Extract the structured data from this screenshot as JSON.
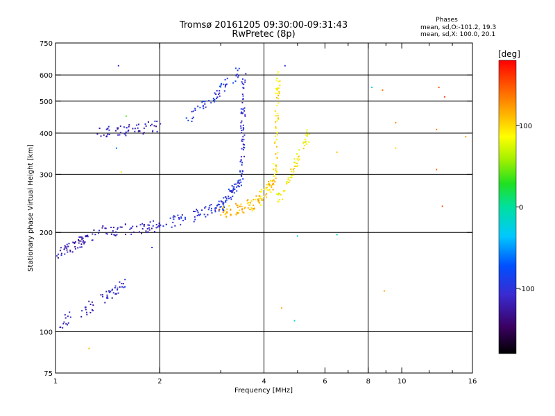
{
  "chart_data": {
    "type": "scatter",
    "title": "Tromsø 20161205 09:30:00-09:31:43",
    "subtitle": "RwPretec (8p)",
    "stats": {
      "heading": "Phases",
      "line1": "mean, sd,O:-101.2, 19.3",
      "line2": "mean, sd,X: 100.0, 20.1"
    },
    "xlabel": "Frequency [MHz]",
    "ylabel": "Stationary phase Virtual Height [km]",
    "x_scale": "log",
    "y_scale": "log",
    "xlim": [
      1,
      16
    ],
    "ylim": [
      75,
      750
    ],
    "x_ticks": [
      1,
      2,
      4,
      6,
      8,
      10,
      16
    ],
    "x_tick_labels": [
      "1",
      "2",
      "4",
      "6",
      "8",
      "10",
      "16"
    ],
    "x_major_grid": [
      2,
      4,
      8
    ],
    "x_minor_ticks": [
      3,
      5,
      7,
      9,
      12,
      14
    ],
    "y_ticks": [
      75,
      100,
      200,
      300,
      400,
      500,
      600,
      750
    ],
    "y_tick_labels": [
      "75",
      "100",
      "200",
      "300",
      "400",
      "500",
      "600",
      "750"
    ],
    "y_major_grid": [
      100,
      200,
      300,
      400,
      500,
      600
    ],
    "grid": true,
    "colorbar": {
      "label": "[deg]",
      "range": [
        -180,
        180
      ],
      "ticks": [
        100,
        0,
        -100
      ],
      "tick_labels": [
        "100",
        "0",
        "-100"
      ]
    },
    "series": [
      {
        "mode": "O",
        "mean_phase": -101.2,
        "sd_phase": 19.3,
        "segments": [
          {
            "f": [
              1.0,
              1.3
            ],
            "h": [
              170,
              200
            ],
            "phase": -120
          },
          {
            "f": [
              1.3,
              2.0
            ],
            "h": [
              200,
              210
            ],
            "phase": -115
          },
          {
            "f": [
              2.0,
              3.0
            ],
            "h": [
              210,
              240
            ],
            "phase": -100
          },
          {
            "f": [
              3.0,
              3.45
            ],
            "h": [
              240,
              290
            ],
            "phase": -95
          },
          {
            "f": [
              3.45,
              3.5
            ],
            "h": [
              290,
              600
            ],
            "phase": -105
          },
          {
            "f": [
              1.0,
              1.6
            ],
            "h": [
              105,
              140
            ],
            "phase": -110
          },
          {
            "f": [
              1.3,
              2.0
            ],
            "h": [
              400,
              420
            ],
            "phase": -115
          },
          {
            "f": [
              2.4,
              3.4
            ],
            "h": [
              440,
              620
            ],
            "phase": -95
          }
        ]
      },
      {
        "mode": "X",
        "mean_phase": 100.0,
        "sd_phase": 20.1,
        "segments": [
          {
            "f": [
              3.0,
              3.8
            ],
            "h": [
              230,
              245
            ],
            "phase": 110
          },
          {
            "f": [
              3.8,
              4.3
            ],
            "h": [
              245,
              290
            ],
            "phase": 105
          },
          {
            "f": [
              4.3,
              4.4
            ],
            "h": [
              290,
              600
            ],
            "phase": 95
          },
          {
            "f": [
              4.4,
              5.4
            ],
            "h": [
              250,
              400
            ],
            "phase": 90
          }
        ]
      }
    ],
    "scattered_points": [
      {
        "x": 1.52,
        "y": 640,
        "phase": -110
      },
      {
        "x": 4.6,
        "y": 640,
        "phase": -100
      },
      {
        "x": 8.2,
        "y": 550,
        "phase": -30
      },
      {
        "x": 8.8,
        "y": 540,
        "phase": 140
      },
      {
        "x": 12.8,
        "y": 550,
        "phase": 150
      },
      {
        "x": 13.3,
        "y": 515,
        "phase": 160
      },
      {
        "x": 15.3,
        "y": 390,
        "phase": 120
      },
      {
        "x": 6.5,
        "y": 350,
        "phase": 110
      },
      {
        "x": 9.6,
        "y": 360,
        "phase": 100
      },
      {
        "x": 9.6,
        "y": 430,
        "phase": 130
      },
      {
        "x": 12.6,
        "y": 310,
        "phase": 140
      },
      {
        "x": 12.6,
        "y": 410,
        "phase": 130
      },
      {
        "x": 13.1,
        "y": 240,
        "phase": 150
      },
      {
        "x": 5.0,
        "y": 195,
        "phase": -20
      },
      {
        "x": 6.5,
        "y": 197,
        "phase": -10
      },
      {
        "x": 4.9,
        "y": 108,
        "phase": -20
      },
      {
        "x": 4.5,
        "y": 118,
        "phase": 120
      },
      {
        "x": 8.9,
        "y": 133,
        "phase": 120
      },
      {
        "x": 1.25,
        "y": 89,
        "phase": 110
      },
      {
        "x": 1.55,
        "y": 305,
        "phase": 90
      },
      {
        "x": 1.6,
        "y": 450,
        "phase": 40
      },
      {
        "x": 1.5,
        "y": 360,
        "phase": -60
      },
      {
        "x": 1.9,
        "y": 180,
        "phase": -100
      }
    ]
  }
}
